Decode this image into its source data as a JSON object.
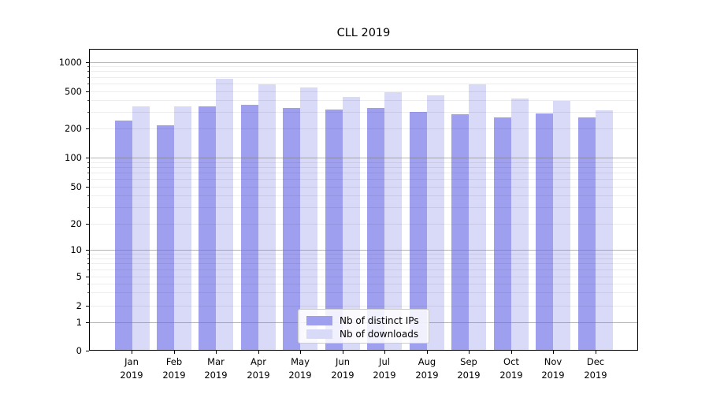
{
  "title": "CLL 2019",
  "chart_data": {
    "type": "bar",
    "title": "CLL 2019",
    "yscale": "symlog",
    "grid": true,
    "legend_position": "lower center",
    "categories": [
      "Jan 2019",
      "Feb 2019",
      "Mar 2019",
      "Apr 2019",
      "May 2019",
      "Jun 2019",
      "Jul 2019",
      "Aug 2019",
      "Sep 2019",
      "Oct 2019",
      "Nov 2019",
      "Dec 2019"
    ],
    "series": [
      {
        "name": "Nb of distinct IPs",
        "color": "#9f9ff0",
        "values": [
          245,
          215,
          345,
          360,
          330,
          320,
          330,
          300,
          285,
          260,
          290,
          262
        ]
      },
      {
        "name": "Nb of downloads",
        "color": "#d9d9f8",
        "values": [
          345,
          345,
          665,
          585,
          545,
          430,
          490,
          450,
          590,
          415,
          395,
          315
        ]
      }
    ],
    "yticks": [
      1000,
      500,
      200,
      100,
      50,
      20,
      10,
      5,
      2,
      1,
      0
    ],
    "y_major_gridlines": [
      1,
      10,
      100,
      1000
    ],
    "y_minor_gridlines": [
      2,
      3,
      4,
      5,
      6,
      7,
      8,
      9,
      20,
      30,
      40,
      50,
      60,
      70,
      80,
      90,
      200,
      300,
      400,
      500,
      600,
      700,
      800,
      900
    ],
    "ylim": [
      0,
      1400
    ]
  }
}
